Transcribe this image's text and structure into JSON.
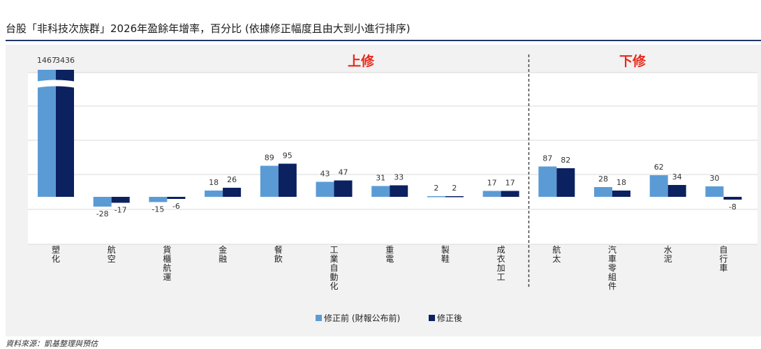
{
  "header": {
    "title": "台股「非科技次族群」2026年盈餘年增率，百分比 (依據修正幅度且由大到小進行排序)"
  },
  "source": "資料來源：凱基整理與預估",
  "colors": {
    "before": "#5b9bd5",
    "after": "#0b2160",
    "divider": "#444444",
    "section": "#e8291c"
  },
  "chart_data": {
    "type": "bar",
    "sections": [
      "上修",
      "下修"
    ],
    "categories": [
      "塑化",
      "航空",
      "貨櫃航運",
      "金融",
      "餐飲",
      "工業自動化",
      "重電",
      "製鞋",
      "成衣加工",
      "航太",
      "汽車零組件",
      "水泥",
      "自行車"
    ],
    "category_section": [
      0,
      0,
      0,
      0,
      0,
      0,
      0,
      0,
      0,
      1,
      1,
      1,
      1
    ],
    "series": [
      {
        "name": "修正前 (財報公布前)",
        "values": [
          1467,
          -28,
          -15,
          18,
          89,
          43,
          31,
          2,
          17,
          87,
          28,
          62,
          30
        ]
      },
      {
        "name": "修正後",
        "values": [
          3436,
          -17,
          -6,
          26,
          95,
          47,
          33,
          2,
          17,
          82,
          18,
          34,
          -8
        ]
      }
    ],
    "value_labels": [
      [
        "1467",
        "-28",
        "-15",
        "18",
        "89",
        "43",
        "31",
        "2",
        "17",
        "87",
        "28",
        "62",
        "30"
      ],
      [
        "3436",
        "-17",
        "-6",
        "26",
        "95",
        "47",
        "33",
        "2",
        "17",
        "82",
        "18",
        "34",
        "-8"
      ]
    ],
    "axis_break": true,
    "grid": true,
    "legend_position": "bottom"
  }
}
